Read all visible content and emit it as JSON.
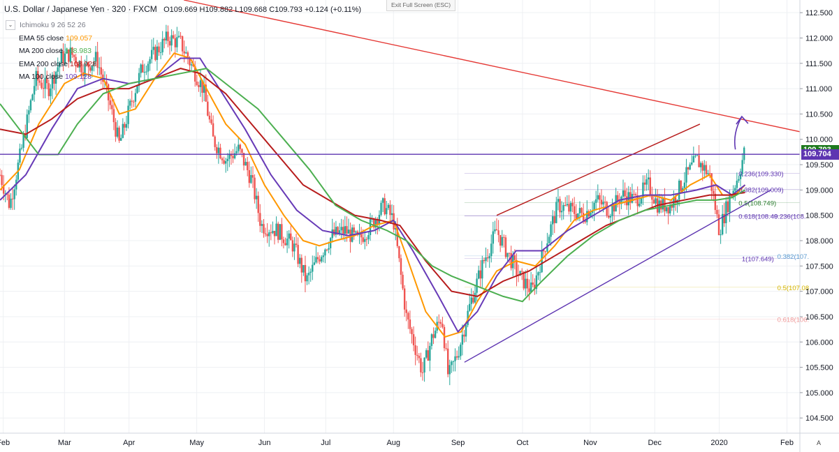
{
  "header": {
    "symbol": "U.S. Dollar / Japanese Yen · 320 · FXCM",
    "ohlc": "O109.669 H109.882 L109.668 C109.793 +0.124 (+0.11%)",
    "exit_label": "Exit Full Screen (ESC)"
  },
  "legend": [
    {
      "label": "Ichimoku 9 26 52 26",
      "value": "",
      "color": "#787b86"
    },
    {
      "label": "EMA 55 close",
      "value": "109.057",
      "color": "#ff9800"
    },
    {
      "label": "MA 200 close",
      "value": "108.983",
      "color": "#4caf50"
    },
    {
      "label": "EMA 200 close",
      "value": "108.928",
      "color": "#b71c1c"
    },
    {
      "label": "MA 100 close",
      "value": "109.128",
      "color": "#673ab7"
    }
  ],
  "price_tags": {
    "last": {
      "text": "109.793",
      "value": 109.793,
      "color": "#1e7a1e"
    },
    "line": {
      "text": "109.704",
      "value": 109.704,
      "color": "#5e35b1"
    }
  },
  "a_button": "A",
  "chart_data": {
    "type": "candlestick",
    "y_range": [
      104.2,
      112.75
    ],
    "y_ticks": [
      104.5,
      105.0,
      105.5,
      106.0,
      106.5,
      107.0,
      107.5,
      108.0,
      108.5,
      109.0,
      109.5,
      110.0,
      110.5,
      111.0,
      111.5,
      112.0,
      112.5
    ],
    "y_tick_labels": [
      "104.500",
      "105.000",
      "105.500",
      "106.000",
      "106.500",
      "107.000",
      "107.500",
      "108.000",
      "108.500",
      "109.000",
      "109.500",
      "110.000",
      "110.500",
      "111.000",
      "111.500",
      "112.000",
      "112.500"
    ],
    "x_range": [
      0,
      12.4
    ],
    "x_ticks": [
      {
        "label": "Feb",
        "t": 0.05
      },
      {
        "label": "Mar",
        "t": 1.0
      },
      {
        "label": "Apr",
        "t": 2.0
      },
      {
        "label": "May",
        "t": 3.05
      },
      {
        "label": "Jun",
        "t": 4.1
      },
      {
        "label": "Jul",
        "t": 5.05
      },
      {
        "label": "Aug",
        "t": 6.1
      },
      {
        "label": "Sep",
        "t": 7.1
      },
      {
        "label": "Oct",
        "t": 8.1
      },
      {
        "label": "Nov",
        "t": 9.15
      },
      {
        "label": "Dec",
        "t": 10.15
      },
      {
        "label": "2020",
        "t": 11.15
      },
      {
        "label": "Feb",
        "t": 12.2
      }
    ],
    "price_path": [
      [
        0.0,
        109.3
      ],
      [
        0.15,
        108.7
      ],
      [
        0.35,
        109.9
      ],
      [
        0.55,
        111.2
      ],
      [
        0.75,
        111.0
      ],
      [
        0.95,
        111.6
      ],
      [
        1.1,
        111.7
      ],
      [
        1.3,
        111.4
      ],
      [
        1.5,
        111.6
      ],
      [
        1.7,
        110.7
      ],
      [
        1.85,
        109.9
      ],
      [
        2.05,
        110.8
      ],
      [
        2.2,
        111.4
      ],
      [
        2.4,
        111.7
      ],
      [
        2.6,
        112.0
      ],
      [
        2.8,
        111.9
      ],
      [
        2.95,
        111.5
      ],
      [
        3.15,
        111.0
      ],
      [
        3.3,
        110.0
      ],
      [
        3.5,
        109.6
      ],
      [
        3.7,
        109.8
      ],
      [
        3.9,
        109.2
      ],
      [
        4.05,
        108.3
      ],
      [
        4.3,
        108.2
      ],
      [
        4.55,
        107.9
      ],
      [
        4.75,
        107.2
      ],
      [
        4.95,
        107.7
      ],
      [
        5.15,
        108.1
      ],
      [
        5.35,
        108.2
      ],
      [
        5.55,
        108.0
      ],
      [
        5.75,
        108.3
      ],
      [
        5.95,
        108.7
      ],
      [
        6.1,
        108.4
      ],
      [
        6.3,
        106.5
      ],
      [
        6.55,
        105.4
      ],
      [
        6.7,
        106.1
      ],
      [
        6.85,
        106.5
      ],
      [
        6.95,
        105.3
      ],
      [
        7.1,
        105.8
      ],
      [
        7.3,
        106.8
      ],
      [
        7.5,
        107.6
      ],
      [
        7.7,
        108.2
      ],
      [
        7.85,
        107.8
      ],
      [
        8.05,
        107.3
      ],
      [
        8.25,
        107.0
      ],
      [
        8.45,
        107.9
      ],
      [
        8.65,
        108.7
      ],
      [
        8.85,
        108.6
      ],
      [
        9.05,
        108.5
      ],
      [
        9.25,
        108.8
      ],
      [
        9.45,
        108.6
      ],
      [
        9.65,
        108.9
      ],
      [
        9.85,
        108.8
      ],
      [
        10.05,
        109.1
      ],
      [
        10.2,
        108.7
      ],
      [
        10.4,
        108.7
      ],
      [
        10.6,
        109.2
      ],
      [
        10.8,
        109.6
      ],
      [
        11.0,
        109.3
      ],
      [
        11.15,
        108.2
      ],
      [
        11.3,
        108.8
      ],
      [
        11.45,
        109.3
      ],
      [
        11.55,
        109.8
      ]
    ],
    "series": [
      {
        "name": "EMA 55 close",
        "color": "#ff9800",
        "points": [
          [
            0.0,
            109.0
          ],
          [
            0.3,
            109.4
          ],
          [
            0.6,
            110.3
          ],
          [
            1.0,
            111.1
          ],
          [
            1.3,
            111.3
          ],
          [
            1.6,
            111.2
          ],
          [
            1.85,
            110.5
          ],
          [
            2.1,
            110.6
          ],
          [
            2.4,
            111.2
          ],
          [
            2.7,
            111.7
          ],
          [
            2.95,
            111.6
          ],
          [
            3.2,
            111.0
          ],
          [
            3.5,
            110.3
          ],
          [
            3.8,
            109.9
          ],
          [
            4.1,
            109.1
          ],
          [
            4.4,
            108.5
          ],
          [
            4.7,
            108.0
          ],
          [
            4.95,
            107.9
          ],
          [
            5.2,
            108.0
          ],
          [
            5.5,
            108.1
          ],
          [
            5.8,
            108.3
          ],
          [
            6.1,
            108.4
          ],
          [
            6.3,
            107.7
          ],
          [
            6.6,
            106.6
          ],
          [
            6.9,
            106.1
          ],
          [
            7.15,
            106.2
          ],
          [
            7.4,
            106.8
          ],
          [
            7.7,
            107.4
          ],
          [
            8.0,
            107.6
          ],
          [
            8.3,
            107.5
          ],
          [
            8.6,
            107.9
          ],
          [
            8.9,
            108.4
          ],
          [
            9.2,
            108.6
          ],
          [
            9.5,
            108.7
          ],
          [
            9.8,
            108.8
          ],
          [
            10.1,
            108.9
          ],
          [
            10.4,
            108.8
          ],
          [
            10.7,
            109.1
          ],
          [
            11.0,
            109.3
          ],
          [
            11.2,
            108.9
          ],
          [
            11.4,
            108.9
          ],
          [
            11.55,
            109.1
          ]
        ]
      },
      {
        "name": "MA 100 close",
        "color": "#673ab7",
        "points": [
          [
            0.0,
            108.8
          ],
          [
            0.4,
            109.3
          ],
          [
            0.8,
            110.2
          ],
          [
            1.2,
            111.0
          ],
          [
            1.6,
            111.2
          ],
          [
            2.0,
            111.1
          ],
          [
            2.4,
            111.2
          ],
          [
            2.8,
            111.6
          ],
          [
            3.1,
            111.6
          ],
          [
            3.4,
            111.0
          ],
          [
            3.8,
            110.2
          ],
          [
            4.2,
            109.3
          ],
          [
            4.6,
            108.6
          ],
          [
            5.0,
            108.2
          ],
          [
            5.4,
            108.1
          ],
          [
            5.8,
            108.2
          ],
          [
            6.1,
            108.4
          ],
          [
            6.4,
            107.8
          ],
          [
            6.8,
            106.9
          ],
          [
            7.1,
            106.2
          ],
          [
            7.4,
            106.6
          ],
          [
            7.7,
            107.3
          ],
          [
            8.0,
            107.8
          ],
          [
            8.4,
            107.8
          ],
          [
            8.8,
            108.2
          ],
          [
            9.2,
            108.5
          ],
          [
            9.6,
            108.8
          ],
          [
            10.0,
            108.9
          ],
          [
            10.4,
            108.9
          ],
          [
            10.8,
            109.0
          ],
          [
            11.1,
            109.1
          ],
          [
            11.35,
            108.9
          ],
          [
            11.55,
            109.1
          ]
        ]
      },
      {
        "name": "EMA 200 close",
        "color": "#b71c1c",
        "points": [
          [
            0.0,
            110.2
          ],
          [
            0.4,
            110.1
          ],
          [
            0.8,
            110.4
          ],
          [
            1.2,
            110.8
          ],
          [
            1.6,
            111.0
          ],
          [
            2.0,
            111.0
          ],
          [
            2.4,
            111.2
          ],
          [
            2.8,
            111.4
          ],
          [
            3.1,
            111.3
          ],
          [
            3.5,
            110.9
          ],
          [
            3.9,
            110.3
          ],
          [
            4.3,
            109.7
          ],
          [
            4.7,
            109.1
          ],
          [
            5.1,
            108.8
          ],
          [
            5.5,
            108.5
          ],
          [
            5.9,
            108.4
          ],
          [
            6.2,
            108.3
          ],
          [
            6.6,
            107.6
          ],
          [
            7.0,
            107.0
          ],
          [
            7.4,
            106.9
          ],
          [
            7.8,
            107.2
          ],
          [
            8.2,
            107.4
          ],
          [
            8.6,
            107.7
          ],
          [
            9.0,
            108.0
          ],
          [
            9.4,
            108.3
          ],
          [
            9.8,
            108.5
          ],
          [
            10.2,
            108.7
          ],
          [
            10.6,
            108.8
          ],
          [
            11.0,
            108.9
          ],
          [
            11.3,
            108.9
          ],
          [
            11.55,
            108.95
          ]
        ]
      },
      {
        "name": "MA 200 close",
        "color": "#4caf50",
        "points": [
          [
            0.0,
            110.7
          ],
          [
            0.3,
            110.2
          ],
          [
            0.6,
            109.7
          ],
          [
            0.9,
            109.7
          ],
          [
            1.2,
            110.3
          ],
          [
            1.6,
            110.9
          ],
          [
            2.0,
            111.1
          ],
          [
            2.4,
            111.2
          ],
          [
            2.8,
            111.3
          ],
          [
            3.2,
            111.4
          ],
          [
            3.6,
            111.0
          ],
          [
            4.0,
            110.6
          ],
          [
            4.4,
            110.0
          ],
          [
            4.8,
            109.4
          ],
          [
            5.2,
            108.7
          ],
          [
            5.6,
            108.4
          ],
          [
            6.0,
            108.2
          ],
          [
            6.3,
            108.0
          ],
          [
            6.7,
            107.5
          ],
          [
            7.0,
            107.3
          ],
          [
            7.4,
            107.1
          ],
          [
            7.8,
            106.9
          ],
          [
            8.1,
            106.8
          ],
          [
            8.4,
            107.2
          ],
          [
            8.8,
            107.7
          ],
          [
            9.2,
            108.1
          ],
          [
            9.6,
            108.4
          ],
          [
            10.0,
            108.6
          ],
          [
            10.4,
            108.7
          ],
          [
            10.8,
            108.8
          ],
          [
            11.1,
            108.8
          ],
          [
            11.35,
            108.85
          ],
          [
            11.55,
            109.0
          ]
        ]
      }
    ],
    "lines": [
      {
        "name": "long-term-resistance",
        "color": "#e53935",
        "from": [
          2.85,
          112.75
        ],
        "to": [
          12.4,
          110.15
        ]
      },
      {
        "name": "channel-upper",
        "color": "#b71c1c",
        "from": [
          7.7,
          108.5
        ],
        "to": [
          10.85,
          110.3
        ]
      },
      {
        "name": "channel-lower",
        "color": "#5e35b1",
        "from": [
          7.2,
          105.6
        ],
        "to": [
          11.95,
          109.0
        ]
      },
      {
        "name": "support-level",
        "color": "#5e35b1",
        "from": [
          0.0,
          109.704
        ],
        "to": [
          12.4,
          109.704
        ]
      }
    ],
    "fibonacci_labels": [
      {
        "text": "0.236(109.330)",
        "t": 11.45,
        "y": 109.33,
        "color": "#5e35b1"
      },
      {
        "text": "0.382(109.009)",
        "t": 11.45,
        "y": 109.009,
        "color": "#5e35b1"
      },
      {
        "text": "0.5(108.749)",
        "t": 11.45,
        "y": 108.749,
        "color": "#2e7d32"
      },
      {
        "text": "0.618(108.49",
        "t": 11.45,
        "y": 108.49,
        "color": "#5e35b1"
      },
      {
        "text": "0.236(108.",
        "t": 12.0,
        "y": 108.49,
        "color": "#5e35b1"
      },
      {
        "text": "1(107.649)",
        "t": 11.5,
        "y": 107.649,
        "color": "#5e35b1"
      },
      {
        "text": "0.382(107.",
        "t": 12.05,
        "y": 107.7,
        "color": "#5c9bd1"
      },
      {
        "text": "0.5(107.08",
        "t": 12.05,
        "y": 107.08,
        "color": "#d4b400"
      },
      {
        "text": "0.618(106.",
        "t": 12.05,
        "y": 106.45,
        "color": "#ef9a9a"
      }
    ],
    "arrow": {
      "from": [
        11.4,
        109.8
      ],
      "to": [
        11.5,
        110.45
      ],
      "color": "#5e35b1"
    }
  }
}
